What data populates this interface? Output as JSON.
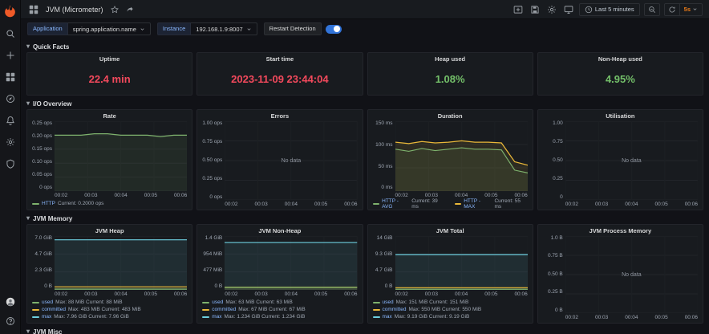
{
  "labels": {
    "no_data": "No data"
  },
  "header": {
    "title": "JVM (Micrometer)",
    "time_range": "Last 5 minutes",
    "refresh_interval": "5s"
  },
  "variables": {
    "application_label": "Application",
    "application_value": "spring.application.name",
    "instance_label": "Instance",
    "instance_value": "192.168.1.9:8007",
    "restart_detection_label": "Restart Detection",
    "restart_detection_on": true
  },
  "colors": {
    "stat_red": "#F2495C",
    "stat_green": "#73BF69",
    "series_green": "#7EB26D",
    "series_yellow": "#EAB839",
    "series_teal": "#6ED0E0",
    "toggle_blue": "#3274D9",
    "grafana_orange": "#F05A28"
  },
  "rows": [
    {
      "title": "Quick Facts",
      "type": "stats",
      "panels": [
        {
          "title": "Uptime",
          "value": "22.4 min",
          "color": "#F2495C"
        },
        {
          "title": "Start time",
          "value": "2023-11-09 23:44:04",
          "color": "#F2495C"
        },
        {
          "title": "Heap used",
          "value": "1.08%",
          "color": "#73BF69"
        },
        {
          "title": "Non-Heap used",
          "value": "4.95%",
          "color": "#73BF69"
        }
      ]
    },
    {
      "title": "I/O Overview",
      "type": "graphs",
      "css": "row-io",
      "panels": [
        {
          "title": "Rate",
          "y_ticks": [
            "0.25 ops",
            "0.20 ops",
            "0.15 ops",
            "0.10 ops",
            "0.05 ops",
            "0 ops"
          ],
          "x_ticks": [
            "00:02",
            "00:03",
            "00:04",
            "00:05",
            "00:06"
          ],
          "no_data": false,
          "series": [
            {
              "name": "HTTP",
              "color": "#7EB26D",
              "values": [
                0.8,
                0.8,
                0.8,
                0.82,
                0.82,
                0.8,
                0.8,
                0.8,
                0.78,
                0.8,
                0.8
              ]
            }
          ],
          "legend_layout": "row",
          "legend": [
            {
              "color": "#7EB26D",
              "name": "HTTP",
              "values": "Current: 0.2000 ops"
            }
          ]
        },
        {
          "title": "Errors",
          "y_ticks": [
            "1.00 ops",
            "0.75 ops",
            "0.50 ops",
            "0.25 ops",
            "0 ops"
          ],
          "x_ticks": [
            "00:02",
            "00:03",
            "00:04",
            "00:05",
            "00:06"
          ],
          "no_data": true,
          "series": [],
          "legend": []
        },
        {
          "title": "Duration",
          "y_ticks": [
            "150 ms",
            "100 ms",
            "50 ms",
            "0 ms"
          ],
          "x_ticks": [
            "00:02",
            "00:03",
            "00:04",
            "00:05",
            "00:06"
          ],
          "no_data": false,
          "series": [
            {
              "name": "HTTP - MAX",
              "color": "#EAB839",
              "values": [
                0.7,
                0.68,
                0.71,
                0.69,
                0.7,
                0.72,
                0.7,
                0.7,
                0.69,
                0.42,
                0.37
              ]
            },
            {
              "name": "HTTP - AVG",
              "color": "#7EB26D",
              "values": [
                0.6,
                0.57,
                0.61,
                0.58,
                0.6,
                0.62,
                0.6,
                0.6,
                0.59,
                0.3,
                0.26
              ]
            }
          ],
          "legend_layout": "row",
          "legend": [
            {
              "color": "#7EB26D",
              "name": "HTTP - AVG",
              "values": "Current: 39 ms"
            },
            {
              "color": "#EAB839",
              "name": "HTTP - MAX",
              "values": "Current: 55 ms"
            }
          ]
        },
        {
          "title": "Utilisation",
          "y_ticks": [
            "1.00",
            "0.75",
            "0.50",
            "0.25",
            "0"
          ],
          "x_ticks": [
            "00:02",
            "00:03",
            "00:04",
            "00:05",
            "00:06"
          ],
          "no_data": true,
          "series": [],
          "legend": []
        }
      ]
    },
    {
      "title": "JVM Memory",
      "type": "graphs",
      "css": "row-mem",
      "panels": [
        {
          "title": "JVM Heap",
          "y_ticks": [
            "7.0 GiB",
            "4.7 GiB",
            "2.3 GiB",
            "0 B"
          ],
          "x_ticks": [
            "00:02",
            "00:03",
            "00:04",
            "00:05",
            "00:06"
          ],
          "no_data": false,
          "series": [
            {
              "name": "max",
              "color": "#6ED0E0",
              "values": [
                0.93,
                0.93,
                0.93,
                0.93,
                0.93,
                0.93,
                0.93,
                0.93,
                0.93,
                0.93,
                0.93
              ]
            },
            {
              "name": "committed",
              "color": "#EAB839",
              "values": [
                0.057,
                0.057,
                0.057,
                0.057,
                0.057,
                0.057,
                0.057,
                0.057,
                0.057,
                0.057,
                0.057
              ]
            },
            {
              "name": "used",
              "color": "#7EB26D",
              "values": [
                0.013,
                0.013,
                0.013,
                0.013,
                0.013,
                0.013,
                0.013,
                0.013,
                0.013,
                0.013,
                0.013
              ]
            }
          ],
          "legend_layout": "col",
          "legend": [
            {
              "color": "#7EB26D",
              "name": "used",
              "values": "Max: 88 MiB Current: 88 MiB"
            },
            {
              "color": "#EAB839",
              "name": "committed",
              "values": "Max: 483 MiB Current: 483 MiB"
            },
            {
              "color": "#6ED0E0",
              "name": "max",
              "values": "Max: 7.96 GiB Current: 7.96 GiB"
            }
          ]
        },
        {
          "title": "JVM Non-Heap",
          "y_ticks": [
            "1.4 GiB",
            "954 MiB",
            "477 MiB",
            "0 B"
          ],
          "x_ticks": [
            "00:02",
            "00:03",
            "00:04",
            "00:05",
            "00:06"
          ],
          "no_data": false,
          "series": [
            {
              "name": "max",
              "color": "#6ED0E0",
              "values": [
                0.88,
                0.88,
                0.88,
                0.88,
                0.88,
                0.88,
                0.88,
                0.88,
                0.88,
                0.88,
                0.88
              ]
            },
            {
              "name": "committed",
              "color": "#EAB839",
              "values": [
                0.049,
                0.049,
                0.049,
                0.049,
                0.049,
                0.049,
                0.049,
                0.049,
                0.049,
                0.049,
                0.049
              ]
            },
            {
              "name": "used",
              "color": "#7EB26D",
              "values": [
                0.045,
                0.045,
                0.045,
                0.045,
                0.045,
                0.045,
                0.045,
                0.045,
                0.045,
                0.045,
                0.045
              ]
            }
          ],
          "legend_layout": "col",
          "legend": [
            {
              "color": "#7EB26D",
              "name": "used",
              "values": "Max: 63 MiB Current: 63 MiB"
            },
            {
              "color": "#EAB839",
              "name": "committed",
              "values": "Max: 67 MiB Current: 67 MiB"
            },
            {
              "color": "#6ED0E0",
              "name": "max",
              "values": "Max: 1.234 GiB Current: 1.234 GiB"
            }
          ]
        },
        {
          "title": "JVM Total",
          "y_ticks": [
            "14 GiB",
            "9.3 GiB",
            "4.7 GiB",
            "0 B"
          ],
          "x_ticks": [
            "00:02",
            "00:03",
            "00:04",
            "00:05",
            "00:06"
          ],
          "no_data": false,
          "series": [
            {
              "name": "max",
              "color": "#6ED0E0",
              "values": [
                0.655,
                0.655,
                0.655,
                0.655,
                0.655,
                0.655,
                0.655,
                0.655,
                0.655,
                0.655,
                0.655
              ]
            },
            {
              "name": "committed",
              "color": "#EAB839",
              "values": [
                0.04,
                0.04,
                0.04,
                0.04,
                0.04,
                0.04,
                0.04,
                0.04,
                0.04,
                0.04,
                0.04
              ]
            },
            {
              "name": "used",
              "color": "#7EB26D",
              "values": [
                0.011,
                0.011,
                0.011,
                0.011,
                0.011,
                0.011,
                0.011,
                0.011,
                0.011,
                0.011,
                0.011
              ]
            }
          ],
          "legend_layout": "col",
          "legend": [
            {
              "color": "#7EB26D",
              "name": "used",
              "values": "Max: 151 MiB Current: 151 MiB"
            },
            {
              "color": "#EAB839",
              "name": "committed",
              "values": "Max: 550 MiB Current: 550 MiB"
            },
            {
              "color": "#6ED0E0",
              "name": "max",
              "values": "Max: 9.19 GiB Current: 9.19 GiB"
            }
          ]
        },
        {
          "title": "JVM Process Memory",
          "y_ticks": [
            "1.0 B",
            "0.75 B",
            "0.50 B",
            "0.25 B",
            "0 B"
          ],
          "x_ticks": [
            "00:02",
            "00:03",
            "00:04",
            "00:05",
            "00:06"
          ],
          "no_data": true,
          "series": [],
          "legend": []
        }
      ]
    },
    {
      "title": "JVM Misc",
      "type": "cut"
    }
  ]
}
